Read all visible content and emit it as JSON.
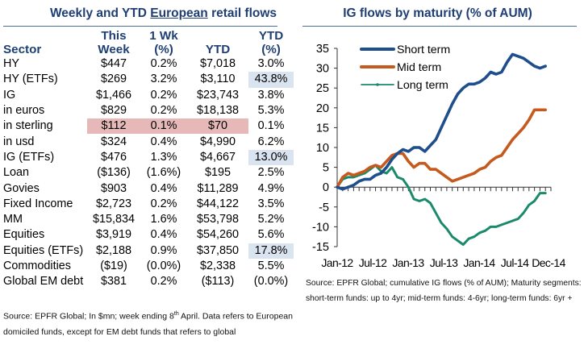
{
  "table": {
    "title_pre": "Weekly and YTD ",
    "title_underlined": "European",
    "title_post": " retail flows",
    "headers": {
      "sector": "Sector",
      "this_week_1": "This",
      "this_week_2": "Week",
      "wk_1": "1 Wk",
      "wk_2": "(%)",
      "ytd": "YTD",
      "ytd_pct_1": "YTD",
      "ytd_pct_2": "(%)"
    },
    "rows": [
      {
        "sector": "HY",
        "week": "$447",
        "wk_pct": "0.2%",
        "ytd": "$7,018",
        "ytd_pct": "3.0%"
      },
      {
        "sector": "HY (ETFs)",
        "week": "$269",
        "wk_pct": "3.2%",
        "ytd": "$3,110",
        "ytd_pct": "43.8%"
      },
      {
        "sector": "IG",
        "week": "$1,466",
        "wk_pct": "0.2%",
        "ytd": "$23,743",
        "ytd_pct": "3.8%"
      },
      {
        "sector": "in euros",
        "week": "$829",
        "wk_pct": "0.2%",
        "ytd": "$18,138",
        "ytd_pct": "5.3%"
      },
      {
        "sector": "in sterling",
        "week": "$112",
        "wk_pct": "0.1%",
        "ytd": "$70",
        "ytd_pct": "0.1%"
      },
      {
        "sector": "in usd",
        "week": "$324",
        "wk_pct": "0.4%",
        "ytd": "$4,990",
        "ytd_pct": "6.2%"
      },
      {
        "sector": "IG (ETFs)",
        "week": "$476",
        "wk_pct": "1.3%",
        "ytd": "$4,667",
        "ytd_pct": "13.0%"
      },
      {
        "sector": "Loan",
        "week": "($136)",
        "wk_pct": "(1.6%)",
        "ytd": "$195",
        "ytd_pct": "2.5%"
      },
      {
        "sector": "Govies",
        "week": "$903",
        "wk_pct": "0.4%",
        "ytd": "$11,289",
        "ytd_pct": "4.9%"
      },
      {
        "sector": "Fixed Income",
        "week": "$2,723",
        "wk_pct": "0.2%",
        "ytd": "$44,122",
        "ytd_pct": "3.5%"
      },
      {
        "sector": "MM",
        "week": "$15,834",
        "wk_pct": "1.6%",
        "ytd": "$53,798",
        "ytd_pct": "5.2%"
      },
      {
        "sector": "Equities",
        "week": "$3,919",
        "wk_pct": "0.4%",
        "ytd": "$54,260",
        "ytd_pct": "5.6%"
      },
      {
        "sector": "Equities (ETFs)",
        "week": "$2,188",
        "wk_pct": "0.9%",
        "ytd": "$37,850",
        "ytd_pct": "17.8%"
      },
      {
        "sector": "Commodities",
        "week": "($19)",
        "wk_pct": "(0.0%)",
        "ytd": "$2,338",
        "ytd_pct": "5.5%"
      },
      {
        "sector": "Global EM debt",
        "week": "$381",
        "wk_pct": "0.2%",
        "ytd": "($113)",
        "ytd_pct": "(0.0%)"
      }
    ],
    "source_pre": "Source: EPFR Global; In $mn; week ending 8",
    "source_sup": "th",
    "source_post": " April. Data refers to European",
    "source_line2": "domiciled funds, except for EM debt funds that refers to global",
    "colors": {
      "title": "#1f3f74",
      "highlight_blue": "#dae3f0",
      "highlight_red": "#e6b9b8"
    }
  },
  "chart_data": {
    "type": "line",
    "title": "IG flows by maturity (% of AUM)",
    "xlabel": "",
    "ylabel": "",
    "ylim": [
      -15,
      35
    ],
    "yticks": [
      "35",
      "30",
      "25",
      "20",
      "15",
      "10",
      "5",
      "0",
      "-5",
      "-10",
      "-15"
    ],
    "xtick_labels": [
      "Jan-12",
      "Jul-12",
      "Jan-13",
      "Jul-13",
      "Jan-14",
      "Jul-14",
      "Dec-14"
    ],
    "x_unit": "months since Jan-12",
    "x": [
      0,
      1,
      2,
      3,
      4,
      5,
      6,
      7,
      8,
      9,
      10,
      11,
      12,
      13,
      14,
      15,
      16,
      17,
      18,
      19,
      20,
      21,
      22,
      23,
      24,
      25,
      26,
      27,
      28,
      29,
      30,
      31,
      32,
      33,
      34,
      35,
      36,
      37,
      38
    ],
    "series": [
      {
        "name": "Short term",
        "color": "#1f4e8c",
        "values": [
          0,
          -0.5,
          0,
          0.5,
          1.5,
          2,
          2,
          3,
          3.5,
          5,
          7,
          8.5,
          9.5,
          9,
          10,
          10,
          9,
          10.5,
          12,
          15,
          18,
          21,
          23.5,
          25,
          26,
          26,
          26.5,
          27.5,
          29,
          28.5,
          29,
          31.5,
          33.5,
          33,
          32.5,
          31.5,
          30.5,
          30,
          30.5
        ]
      },
      {
        "name": "Mid term",
        "color": "#c55a1e",
        "values": [
          0,
          2.5,
          3.5,
          3,
          3.5,
          4,
          5,
          5.5,
          5,
          6.5,
          8,
          8.5,
          8.5,
          6.5,
          5,
          6,
          6,
          4.5,
          4.5,
          3.5,
          2.5,
          1.5,
          2,
          2.5,
          3,
          3.5,
          4.5,
          5,
          6.5,
          7.5,
          8,
          10,
          12,
          13.5,
          15,
          17,
          19.5,
          19.5,
          19.5
        ]
      },
      {
        "name": "Long term",
        "color": "#1a8a6a",
        "values": [
          0,
          2,
          2.5,
          2.5,
          3,
          3.5,
          4.5,
          5.5,
          4,
          3.5,
          5,
          2.5,
          2,
          0,
          -3,
          -3.5,
          -3,
          -4,
          -6.5,
          -9,
          -10.5,
          -12.5,
          -13.5,
          -14.5,
          -13,
          -12.5,
          -11.5,
          -11,
          -10,
          -10,
          -9.5,
          -9,
          -8.5,
          -8,
          -6.5,
          -4.5,
          -3.5,
          -1.5,
          -1.5
        ]
      }
    ],
    "legend": "top-left",
    "source_line1": "Source: EPFR Global; cumulative IG flows (% of AUM); Maturity segments:",
    "source_line2": "short-term funds: up to 4yr; mid-term funds: 4-6yr; long-term funds: 6yr +"
  }
}
